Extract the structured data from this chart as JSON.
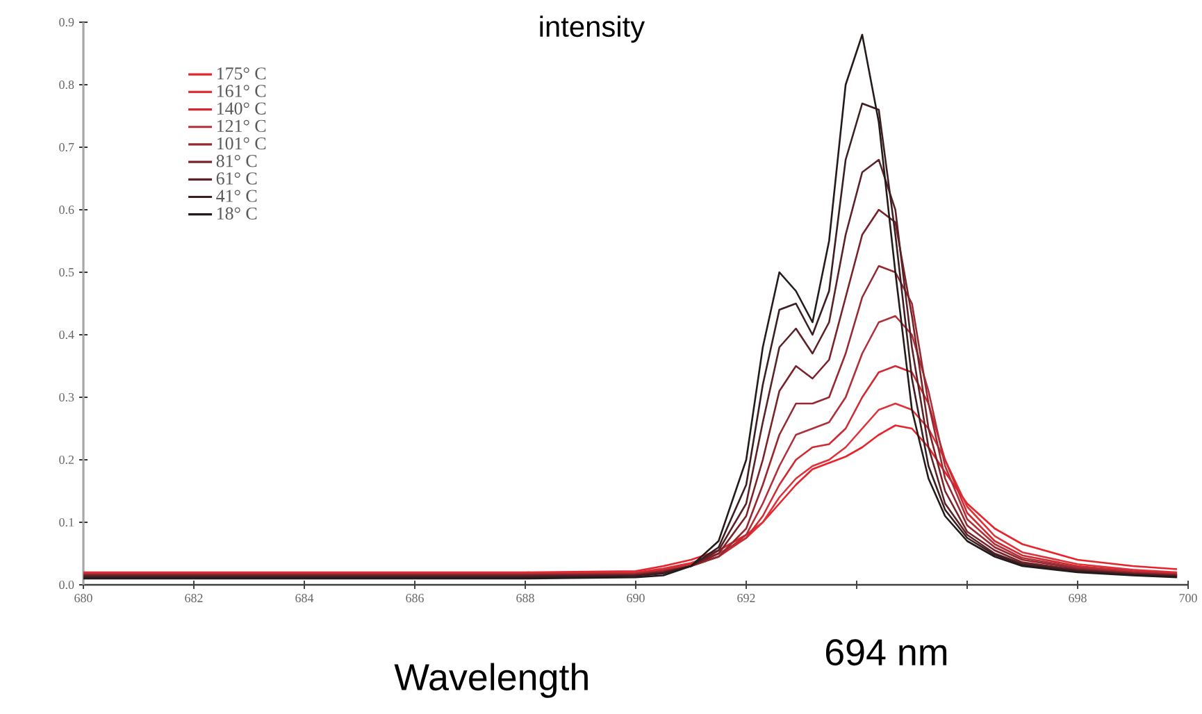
{
  "chart_data": {
    "type": "line",
    "title": "intensity",
    "xlabel": "Wavelength",
    "annotations": [
      "694 nm"
    ],
    "x": [
      680,
      684,
      688,
      690,
      690.5,
      691,
      691.5,
      692,
      692.3,
      692.6,
      692.9,
      693.2,
      693.5,
      693.8,
      694.1,
      694.4,
      694.7,
      695,
      695.3,
      695.6,
      696,
      696.5,
      697,
      698,
      699,
      699.8
    ],
    "series": [
      {
        "name": "175° C",
        "color": "#e8232a",
        "values": [
          0.02,
          0.02,
          0.02,
          0.022,
          0.03,
          0.04,
          0.055,
          0.08,
          0.1,
          0.13,
          0.16,
          0.185,
          0.195,
          0.205,
          0.22,
          0.24,
          0.255,
          0.25,
          0.22,
          0.18,
          0.13,
          0.09,
          0.065,
          0.04,
          0.03,
          0.025
        ]
      },
      {
        "name": "161° C",
        "color": "#e03038",
        "values": [
          0.019,
          0.019,
          0.019,
          0.02,
          0.026,
          0.035,
          0.05,
          0.075,
          0.1,
          0.14,
          0.17,
          0.19,
          0.2,
          0.22,
          0.25,
          0.28,
          0.29,
          0.28,
          0.25,
          0.2,
          0.125,
          0.078,
          0.052,
          0.033,
          0.024,
          0.02
        ]
      },
      {
        "name": "140° C",
        "color": "#cf2a32",
        "values": [
          0.018,
          0.018,
          0.018,
          0.019,
          0.024,
          0.033,
          0.045,
          0.075,
          0.11,
          0.16,
          0.2,
          0.22,
          0.225,
          0.25,
          0.3,
          0.34,
          0.35,
          0.34,
          0.29,
          0.2,
          0.115,
          0.07,
          0.047,
          0.03,
          0.022,
          0.018
        ]
      },
      {
        "name": "121° C",
        "color": "#b0303a",
        "values": [
          0.017,
          0.017,
          0.017,
          0.018,
          0.022,
          0.03,
          0.045,
          0.08,
          0.13,
          0.19,
          0.24,
          0.25,
          0.26,
          0.3,
          0.37,
          0.42,
          0.43,
          0.4,
          0.31,
          0.19,
          0.105,
          0.065,
          0.043,
          0.028,
          0.02,
          0.017
        ]
      },
      {
        "name": "101° C",
        "color": "#962830",
        "values": [
          0.016,
          0.016,
          0.016,
          0.017,
          0.022,
          0.03,
          0.045,
          0.09,
          0.16,
          0.24,
          0.29,
          0.29,
          0.3,
          0.37,
          0.46,
          0.51,
          0.5,
          0.45,
          0.29,
          0.17,
          0.095,
          0.06,
          0.04,
          0.026,
          0.019,
          0.016
        ]
      },
      {
        "name": "81° C",
        "color": "#782228",
        "values": [
          0.015,
          0.015,
          0.015,
          0.016,
          0.02,
          0.03,
          0.05,
          0.11,
          0.2,
          0.31,
          0.35,
          0.33,
          0.36,
          0.46,
          0.56,
          0.6,
          0.58,
          0.43,
          0.25,
          0.15,
          0.085,
          0.055,
          0.036,
          0.024,
          0.018,
          0.015
        ]
      },
      {
        "name": "61° C",
        "color": "#5a2226",
        "values": [
          0.014,
          0.014,
          0.014,
          0.015,
          0.02,
          0.03,
          0.055,
          0.13,
          0.26,
          0.38,
          0.41,
          0.37,
          0.42,
          0.56,
          0.66,
          0.68,
          0.6,
          0.38,
          0.22,
          0.13,
          0.08,
          0.05,
          0.034,
          0.023,
          0.017,
          0.014
        ]
      },
      {
        "name": "41° C",
        "color": "#3c1e22",
        "values": [
          0.012,
          0.012,
          0.012,
          0.014,
          0.018,
          0.03,
          0.06,
          0.16,
          0.32,
          0.44,
          0.45,
          0.4,
          0.47,
          0.68,
          0.77,
          0.76,
          0.56,
          0.33,
          0.19,
          0.12,
          0.075,
          0.048,
          0.032,
          0.022,
          0.016,
          0.013
        ]
      },
      {
        "name": "18° C",
        "color": "#231a1a",
        "values": [
          0.01,
          0.01,
          0.01,
          0.012,
          0.015,
          0.03,
          0.07,
          0.2,
          0.38,
          0.5,
          0.47,
          0.42,
          0.55,
          0.8,
          0.88,
          0.74,
          0.5,
          0.28,
          0.17,
          0.11,
          0.07,
          0.045,
          0.03,
          0.02,
          0.015,
          0.012
        ]
      }
    ],
    "xlim": [
      680,
      700
    ],
    "ylim": [
      0,
      0.9
    ],
    "xticks": [
      {
        "value": 680,
        "label": "680"
      },
      {
        "value": 682,
        "label": "682"
      },
      {
        "value": 684,
        "label": "684"
      },
      {
        "value": 686,
        "label": "686"
      },
      {
        "value": 688,
        "label": "688"
      },
      {
        "value": 690,
        "label": "690"
      },
      {
        "value": 692,
        "label": "692"
      },
      {
        "value": 694,
        "label": null
      },
      {
        "value": 696,
        "label": null
      },
      {
        "value": 698,
        "label": "698"
      },
      {
        "value": 700,
        "label": "700"
      }
    ],
    "yticks": [
      {
        "value": 0,
        "label": "0.0"
      },
      0.1,
      0.2,
      0.3,
      0.4,
      0.5,
      0.6,
      0.7,
      0.8,
      0.9
    ],
    "legend": "top left"
  }
}
